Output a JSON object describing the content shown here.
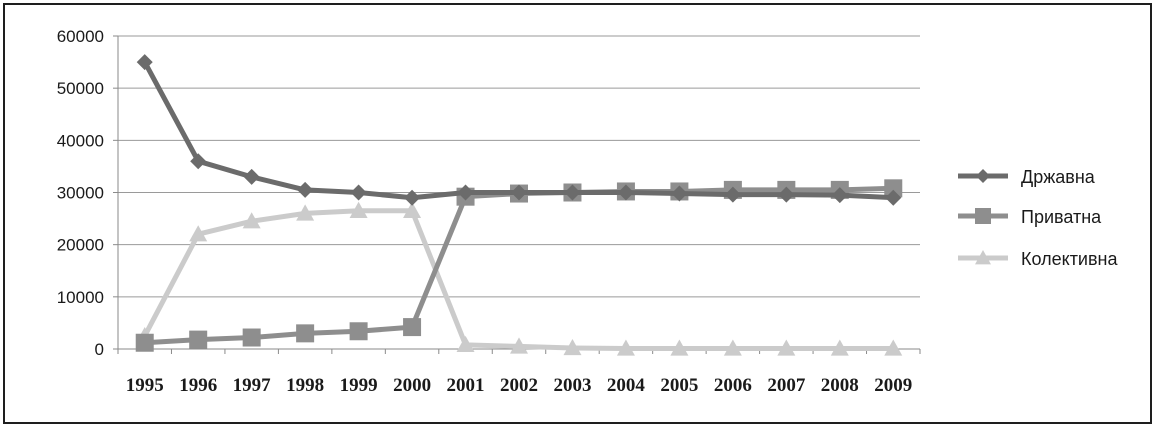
{
  "chart_data": {
    "type": "line",
    "title": "",
    "xlabel": "",
    "ylabel": "",
    "ylim": [
      0,
      60000
    ],
    "y_ticks": [
      "0",
      "10000",
      "20000",
      "30000",
      "40000",
      "50000",
      "60000"
    ],
    "categories": [
      "1995",
      "1996",
      "1997",
      "1998",
      "1999",
      "2000",
      "2001",
      "2002",
      "2003",
      "2004",
      "2005",
      "2006",
      "2007",
      "2008",
      "2009"
    ],
    "grid": true,
    "legend_position": "right",
    "series": [
      {
        "name": "Државна",
        "marker": "diamond",
        "color": "#6b6b6b",
        "values": [
          55000,
          36000,
          33000,
          30500,
          30000,
          29000,
          30000,
          30000,
          30000,
          30000,
          29800,
          29600,
          29600,
          29500,
          29000
        ]
      },
      {
        "name": "Приватна",
        "marker": "square",
        "color": "#8e8e8e",
        "values": [
          1200,
          1800,
          2200,
          3000,
          3400,
          4200,
          29200,
          29800,
          30000,
          30200,
          30200,
          30500,
          30500,
          30500,
          30800
        ]
      },
      {
        "name": "Колективна",
        "marker": "triangle",
        "color": "#cbcbcb",
        "values": [
          2500,
          22000,
          24500,
          26000,
          26500,
          26500,
          800,
          500,
          200,
          100,
          100,
          100,
          100,
          100,
          100
        ]
      }
    ]
  }
}
